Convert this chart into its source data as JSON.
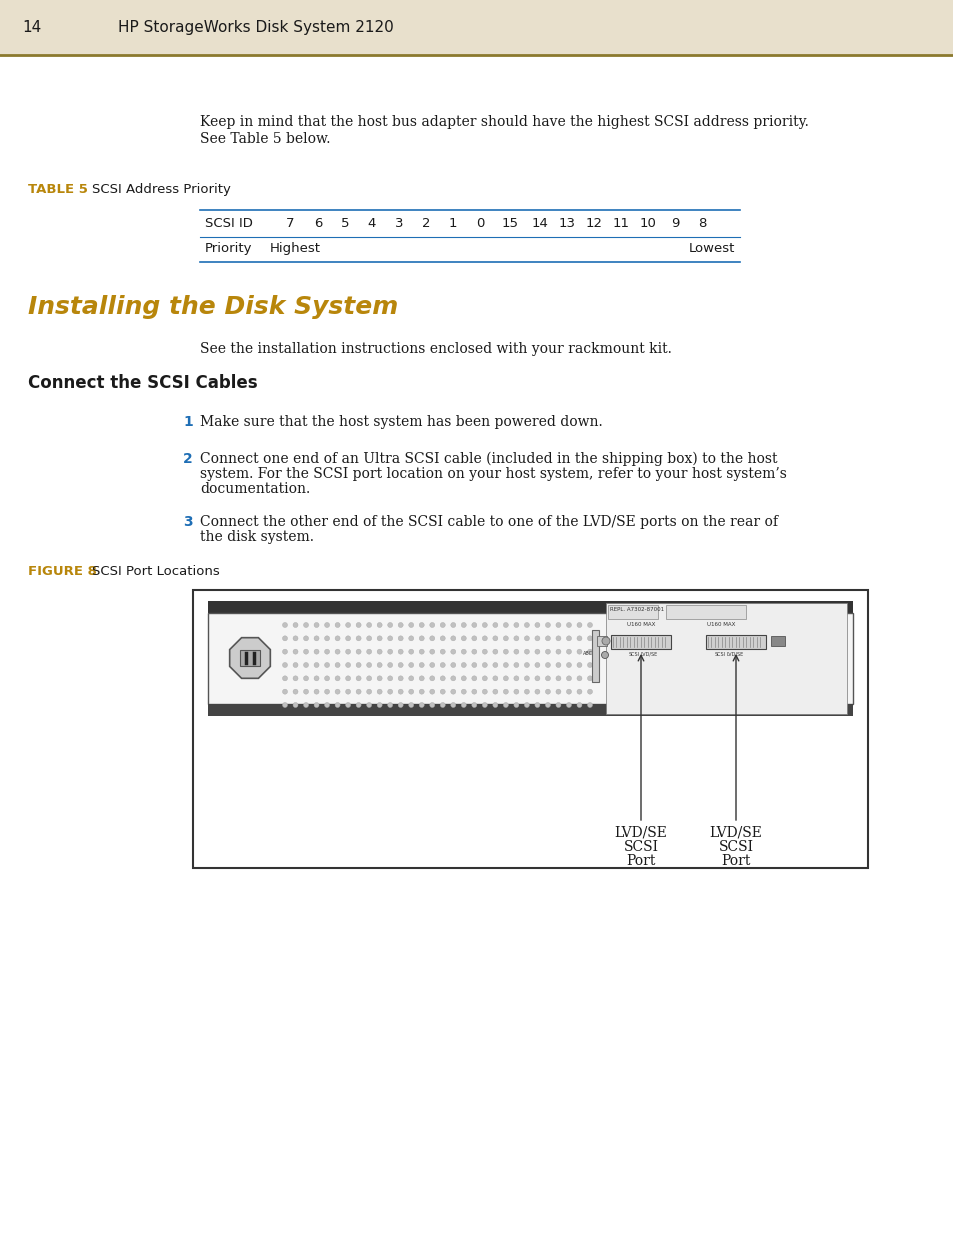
{
  "page_number": "14",
  "header_text": "HP StorageWorks Disk System 2120",
  "header_bg": "#e8e0cc",
  "header_line_color": "#8b7a2e",
  "body_bg": "#ffffff",
  "body_text_color": "#1a1a1a",
  "table_label_color": "#b8860b",
  "figure_label_color": "#b8860b",
  "heading_color": "#b8860b",
  "subheading_color": "#1a1a1a",
  "number_color": "#1e6eb5",
  "table_line_color": "#1e6eb5",
  "intro_text_1": "Keep in mind that the host bus adapter should have the highest SCSI address priority.",
  "intro_text_2": "See Table 5 below.",
  "table_label": "TABLE 5",
  "table_title": "SCSI Address Priority",
  "table_row1_label": "SCSI ID",
  "table_row1_values": [
    "7",
    "6",
    "5",
    "4",
    "3",
    "2",
    "1",
    "0",
    "15",
    "14",
    "13",
    "12",
    "11",
    "10",
    "9",
    "8"
  ],
  "table_row2_label": "Priority",
  "table_row2_left": "Highest",
  "table_row2_right": "Lowest",
  "section_title": "Installing the Disk System",
  "section_intro": "See the installation instructions enclosed with your rackmount kit.",
  "subsection_title": "Connect the SCSI Cables",
  "step1": "Make sure that the host system has been powered down.",
  "step2_line1": "Connect one end of an Ultra SCSI cable (included in the shipping box) to the host",
  "step2_line2": "system. For the SCSI port location on your host system, refer to your host system’s",
  "step2_line3": "documentation.",
  "step3_line1": "Connect the other end of the SCSI cable to one of the LVD/SE ports on the rear of",
  "step3_line2": "the disk system.",
  "figure_label": "FIGURE 8",
  "figure_title": "SCSI Port Locations",
  "label_left_line1": "LVD/SE",
  "label_left_line2": "SCSI",
  "label_left_line3": "Port",
  "label_right_line1": "LVD/SE",
  "label_right_line2": "SCSI",
  "label_right_line3": "Port"
}
